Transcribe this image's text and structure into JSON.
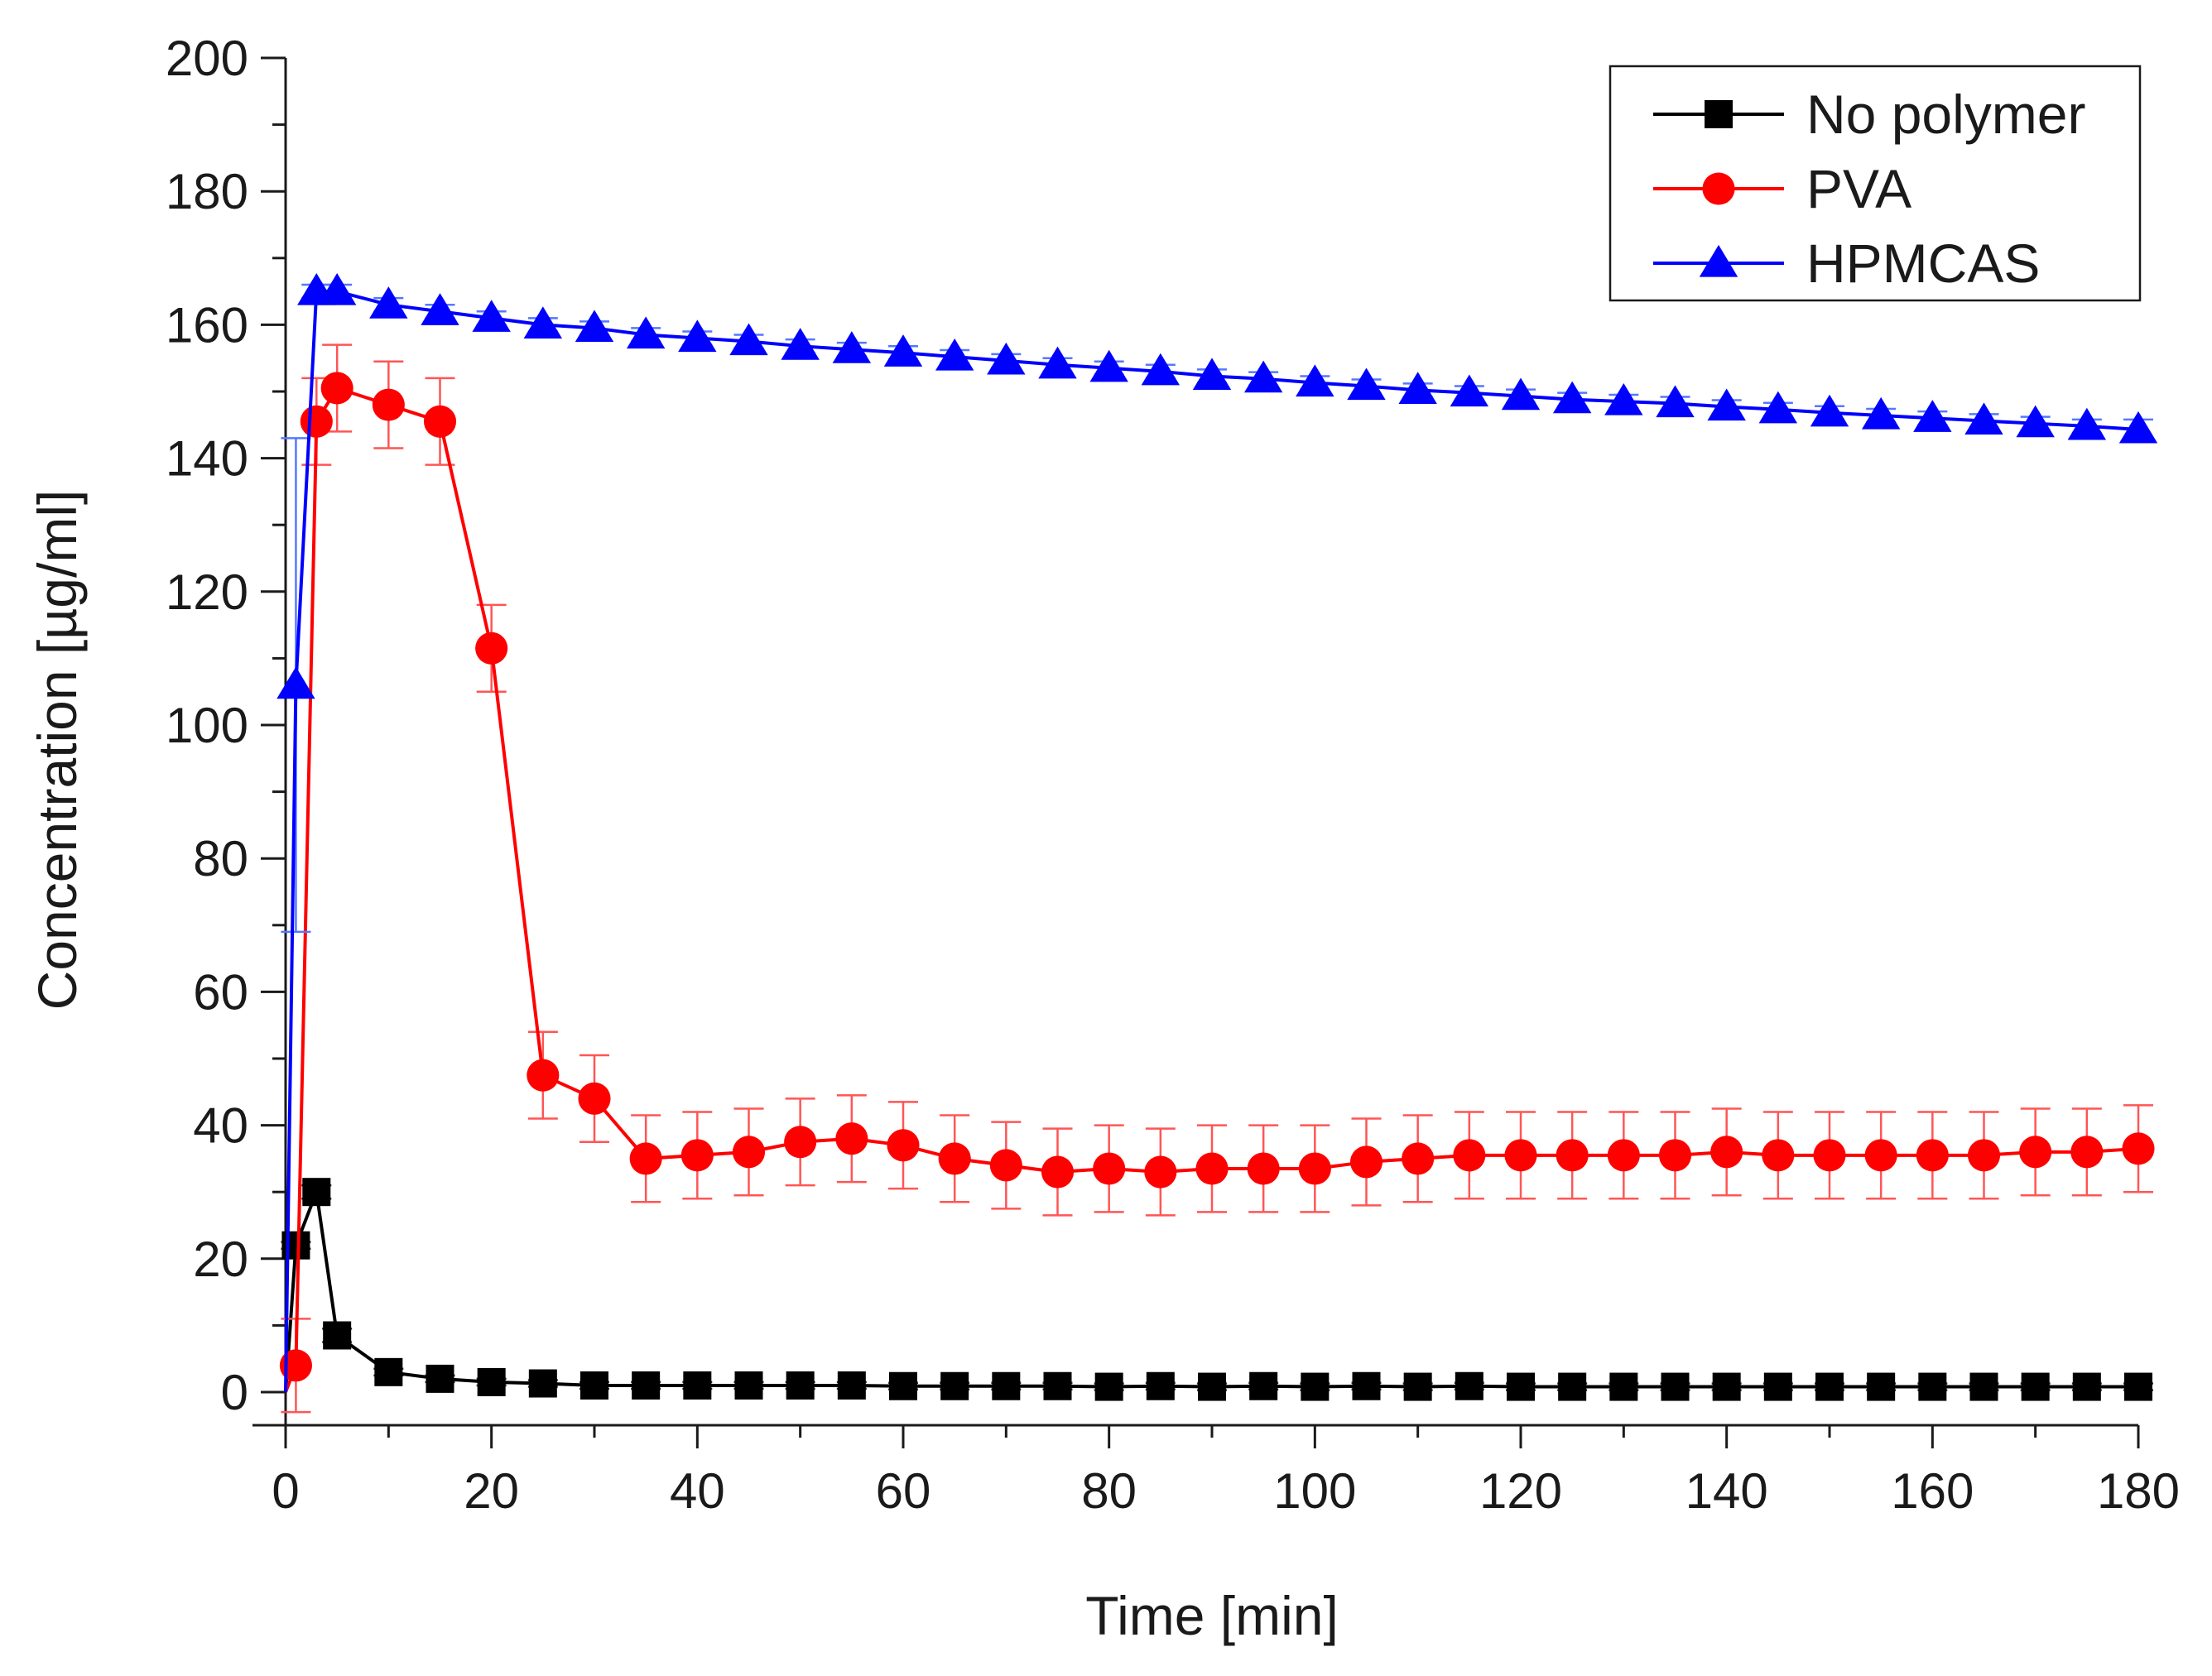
{
  "chart_data": {
    "type": "line",
    "title": "",
    "xlabel": "Time [min]",
    "ylabel": "Concentration [µg/ml]",
    "xlim": [
      0,
      180
    ],
    "ylim": [
      0,
      200
    ],
    "xticks": [
      0,
      20,
      40,
      60,
      80,
      100,
      120,
      140,
      160,
      180
    ],
    "yticks": [
      0,
      20,
      40,
      60,
      80,
      100,
      120,
      140,
      160,
      180,
      200
    ],
    "legend_position": "top-right",
    "series": [
      {
        "name": "No polymer",
        "color": "#000000",
        "marker": "square",
        "x": [
          1,
          3,
          5,
          10,
          15,
          20,
          25,
          30,
          35,
          40,
          45,
          50,
          55,
          60,
          65,
          70,
          75,
          80,
          85,
          90,
          95,
          100,
          105,
          110,
          115,
          120,
          125,
          130,
          135,
          140,
          145,
          150,
          155,
          160,
          165,
          170,
          175,
          180
        ],
        "y": [
          22,
          30,
          8.5,
          3,
          2,
          1.5,
          1.3,
          1,
          1,
          1,
          1,
          1,
          1,
          0.9,
          0.9,
          0.9,
          0.9,
          0.8,
          0.9,
          0.8,
          0.9,
          0.8,
          0.9,
          0.8,
          0.9,
          0.8,
          0.8,
          0.8,
          0.8,
          0.8,
          0.8,
          0.8,
          0.8,
          0.8,
          0.8,
          0.8,
          0.8,
          0.8
        ],
        "error": [
          0.5,
          1,
          1,
          0.5,
          0.5,
          0.5,
          0.5,
          0.5,
          0.5,
          0.5,
          0.5,
          0.5,
          0.5,
          0.5,
          0.5,
          0.5,
          0.5,
          0.5,
          0.5,
          0.5,
          0.5,
          0.5,
          0.5,
          0.5,
          0.5,
          0.5,
          0.5,
          0.5,
          0.5,
          0.5,
          0.5,
          0.5,
          0.5,
          0.5,
          0.5,
          0.5,
          0.5,
          0.5
        ]
      },
      {
        "name": "PVA",
        "color": "#ff0000",
        "marker": "circle",
        "x": [
          1,
          3,
          5,
          10,
          15,
          20,
          25,
          30,
          35,
          40,
          45,
          50,
          55,
          60,
          65,
          70,
          75,
          80,
          85,
          90,
          95,
          100,
          105,
          110,
          115,
          120,
          125,
          130,
          135,
          140,
          145,
          150,
          155,
          160,
          165,
          170,
          175,
          180
        ],
        "y": [
          4,
          145.5,
          150.5,
          148,
          145.5,
          111.5,
          47.5,
          44,
          35,
          35.5,
          36,
          37.5,
          38,
          37,
          35,
          34,
          33,
          33.5,
          33,
          33.5,
          33.5,
          33.5,
          34.5,
          35,
          35.5,
          35.5,
          35.5,
          35.5,
          35.5,
          36,
          35.5,
          35.5,
          35.5,
          35.5,
          35.5,
          36,
          36,
          36.5
        ],
        "error": [
          7,
          6.5,
          6.5,
          6.5,
          6.5,
          6.5,
          6.5,
          6.5,
          6.5,
          6.5,
          6.5,
          6.5,
          6.5,
          6.5,
          6.5,
          6.5,
          6.5,
          6.5,
          6.5,
          6.5,
          6.5,
          6.5,
          6.5,
          6.5,
          6.5,
          6.5,
          6.5,
          6.5,
          6.5,
          6.5,
          6.5,
          6.5,
          6.5,
          6.5,
          6.5,
          6.5,
          6.5,
          6.5
        ]
      },
      {
        "name": "HPMCAS",
        "color": "#0000ff",
        "marker": "triangle",
        "x": [
          0,
          1,
          3,
          5,
          10,
          15,
          20,
          25,
          30,
          35,
          40,
          45,
          50,
          55,
          60,
          65,
          70,
          75,
          80,
          85,
          90,
          95,
          100,
          105,
          110,
          115,
          120,
          125,
          130,
          135,
          140,
          145,
          150,
          155,
          160,
          165,
          170,
          175,
          180
        ],
        "y": [
          0,
          106,
          165,
          165,
          163,
          162,
          161,
          160,
          159.5,
          158.5,
          158,
          157.5,
          156.8,
          156.3,
          155.8,
          155.2,
          154.6,
          154,
          153.5,
          153,
          152.3,
          151.9,
          151.3,
          150.8,
          150.2,
          149.8,
          149.3,
          148.8,
          148.5,
          148.2,
          147.7,
          147.3,
          146.8,
          146.4,
          146,
          145.6,
          145.2,
          144.8,
          144.3
        ],
        "error": [
          0,
          37,
          1,
          1,
          1,
          1,
          1,
          1,
          1,
          1,
          1,
          1,
          1,
          1,
          1,
          1,
          1,
          1,
          1,
          1,
          1,
          1,
          1,
          1,
          1,
          1,
          1,
          1,
          1,
          1,
          1,
          1,
          1,
          1,
          1,
          1,
          1,
          1,
          1.5
        ]
      }
    ]
  }
}
